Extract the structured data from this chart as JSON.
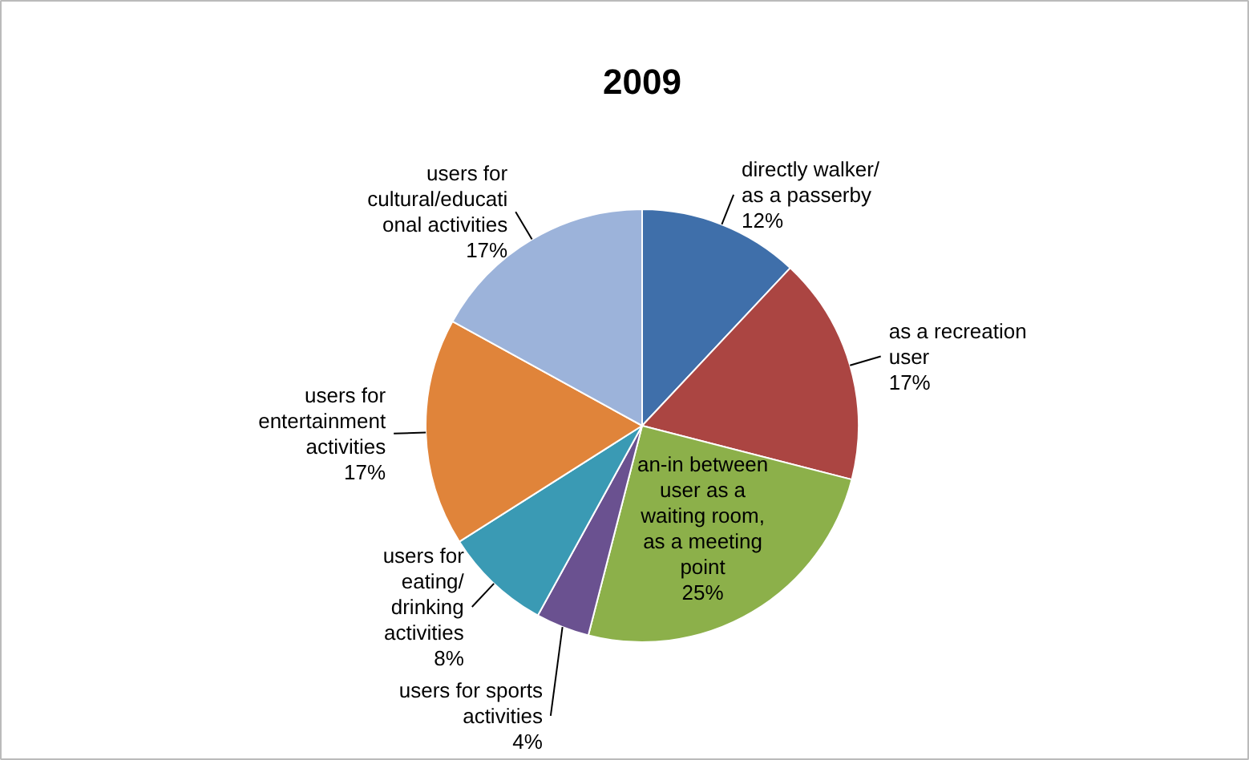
{
  "chart_data": {
    "type": "pie",
    "title": "2009",
    "categories": [
      "directly walker/\nas a passerby",
      "as a recreation\nuser",
      "an-in between\nuser as a\nwaiting room,\nas a meeting\npoint",
      "users for sports\nactivities",
      "users for\neating/\ndrinking\nactivities",
      "users for\nentertainment\nactivities",
      "users for\ncultural/educati\nonal activities"
    ],
    "values": [
      12,
      17,
      25,
      4,
      8,
      17,
      17
    ],
    "value_labels": [
      "12%",
      "17%",
      "25%",
      "4%",
      "8%",
      "17%",
      "17%"
    ],
    "colors": [
      "#3f6faa",
      "#ab4542",
      "#8cb04a",
      "#6a5190",
      "#3a9ab4",
      "#e0843a",
      "#9cb3da"
    ]
  }
}
